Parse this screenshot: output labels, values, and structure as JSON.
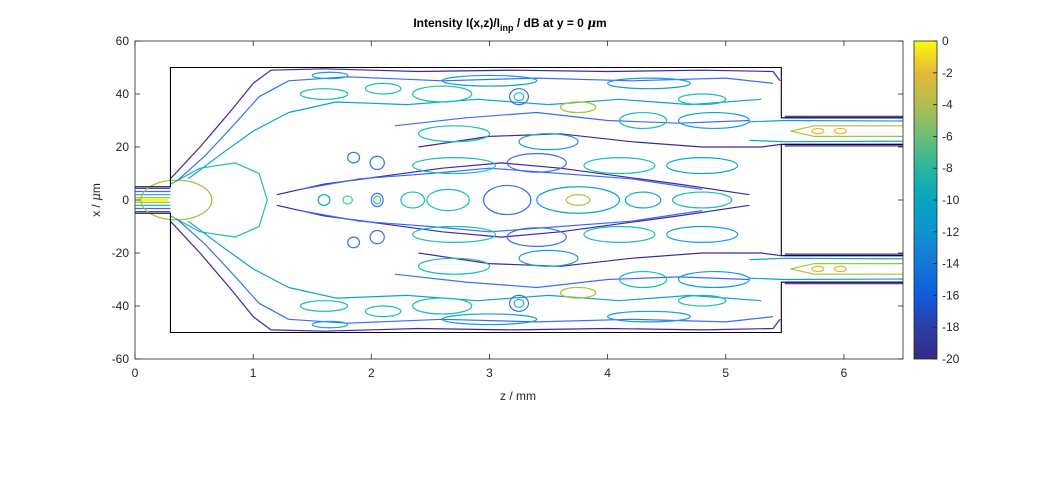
{
  "chart_data": {
    "type": "contour",
    "title_parts": {
      "prefix": "Intensity I(x,z)/I",
      "subscript": "inp",
      "suffix": " / dB at y = 0 ",
      "mu": "μ",
      "unit_tail": "m"
    },
    "xlabel": "z / mm",
    "ylabel_prefix": "x / ",
    "ylabel_mu": "μ",
    "ylabel_tail": "m",
    "xlim": [
      0,
      6.5
    ],
    "ylim": [
      -60,
      60
    ],
    "xticks": [
      "0",
      "1",
      "2",
      "3",
      "4",
      "5",
      "6"
    ],
    "yticks": [
      "60",
      "40",
      "20",
      "0",
      "-20",
      "-40",
      "-60"
    ],
    "colorbar": {
      "range": [
        -20,
        0
      ],
      "ticks": [
        "0",
        "-2",
        "-4",
        "-6",
        "-8",
        "-10",
        "-12",
        "-14",
        "-16",
        "-18",
        "-20"
      ],
      "colormap": "parula"
    },
    "contour_levels_dB": [
      -20,
      -18,
      -16,
      -14,
      -12,
      -10,
      -8,
      -6,
      -4,
      -2
    ],
    "waveguide_outline": {
      "input_guide_halfwidth_um": 5,
      "taper_start_z_mm": 0.3,
      "mmi_start_z_mm": 0.3,
      "mmi_end_z_mm": 5.47,
      "mmi_x_range_um": [
        -50,
        50
      ],
      "output_guides_x_ranges_um": [
        [
          21,
          31
        ],
        [
          -31,
          -21
        ]
      ]
    },
    "colors": {
      "outline": "#000000",
      "c_m20": "#3e26a8",
      "c_m18": "#4744e3",
      "c_m16": "#3a6df9",
      "c_m12": "#0f9fd8",
      "c_m10": "#16bfb5",
      "c_m8": "#3fce8e",
      "c_m6": "#a2c732",
      "c_m4": "#eab82d",
      "c_m2": "#f9fb0e"
    }
  }
}
